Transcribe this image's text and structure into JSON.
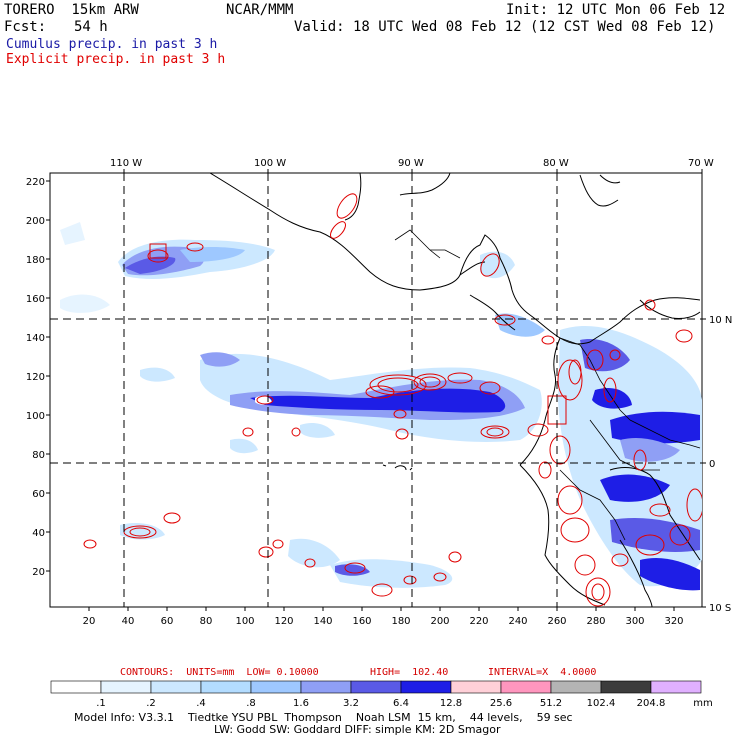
{
  "header": {
    "model": "TORERO  15km ARW",
    "org": "NCAR/MMM",
    "init": "Init: 12 UTC Mon 06 Feb 12",
    "fcst_label": "Fcst:",
    "fcst_value": "54 h",
    "valid": "Valid: 18 UTC Wed 08 Feb 12 (12 CST Wed 08 Feb 12)",
    "cumulus": "Cumulus precip. in past 3 h",
    "explicit": "Explicit precip. in past 3 h"
  },
  "colors": {
    "cumulus_text": "#1a1aa6",
    "explicit_text": "#e00000",
    "contour": "#e00000",
    "coast": "#000000"
  },
  "axes": {
    "lon_labels": [
      "110 W",
      "100 W",
      "90 W",
      "80 W",
      "70 W"
    ],
    "lat_labels": [
      "10 N",
      "0",
      "10 S"
    ],
    "y_ticks": [
      "220",
      "200",
      "180",
      "160",
      "140",
      "120",
      "100",
      "80",
      "60",
      "40",
      "20"
    ],
    "x_ticks": [
      "20",
      "40",
      "60",
      "80",
      "100",
      "120",
      "140",
      "160",
      "180",
      "200",
      "220",
      "240",
      "260",
      "280",
      "300",
      "320"
    ]
  },
  "contours": {
    "units": "CONTOURS:  UNITS=mm  LOW= 0.10000",
    "high": "HIGH=  102.40",
    "interval": "INTERVAL=X  4.0000"
  },
  "colorbar": {
    "labels": [
      ".1",
      ".2",
      ".4",
      ".8",
      "1.6",
      "3.2",
      "6.4",
      "12.8",
      "25.6",
      "51.2",
      "102.4",
      "204.8"
    ],
    "unit": "mm",
    "colors": [
      "#ffffff",
      "#e6f4ff",
      "#cce8ff",
      "#b3dcff",
      "#9ec8ff",
      "#8f9ff5",
      "#5a5ae6",
      "#1e1ee6",
      "#ffd0d8",
      "#ff96be",
      "#b4b4b4",
      "#3c3c3c",
      "#e0b0ff"
    ]
  },
  "model_info": {
    "line1": "Model Info: V3.3.1    Tiedtke YSU PBL  Thompson    Noah LSM  15 km,    44 levels,    59 sec",
    "line2": "LW: Godd SW: Goddard DIFF: simple KM: 2D Smagor"
  }
}
